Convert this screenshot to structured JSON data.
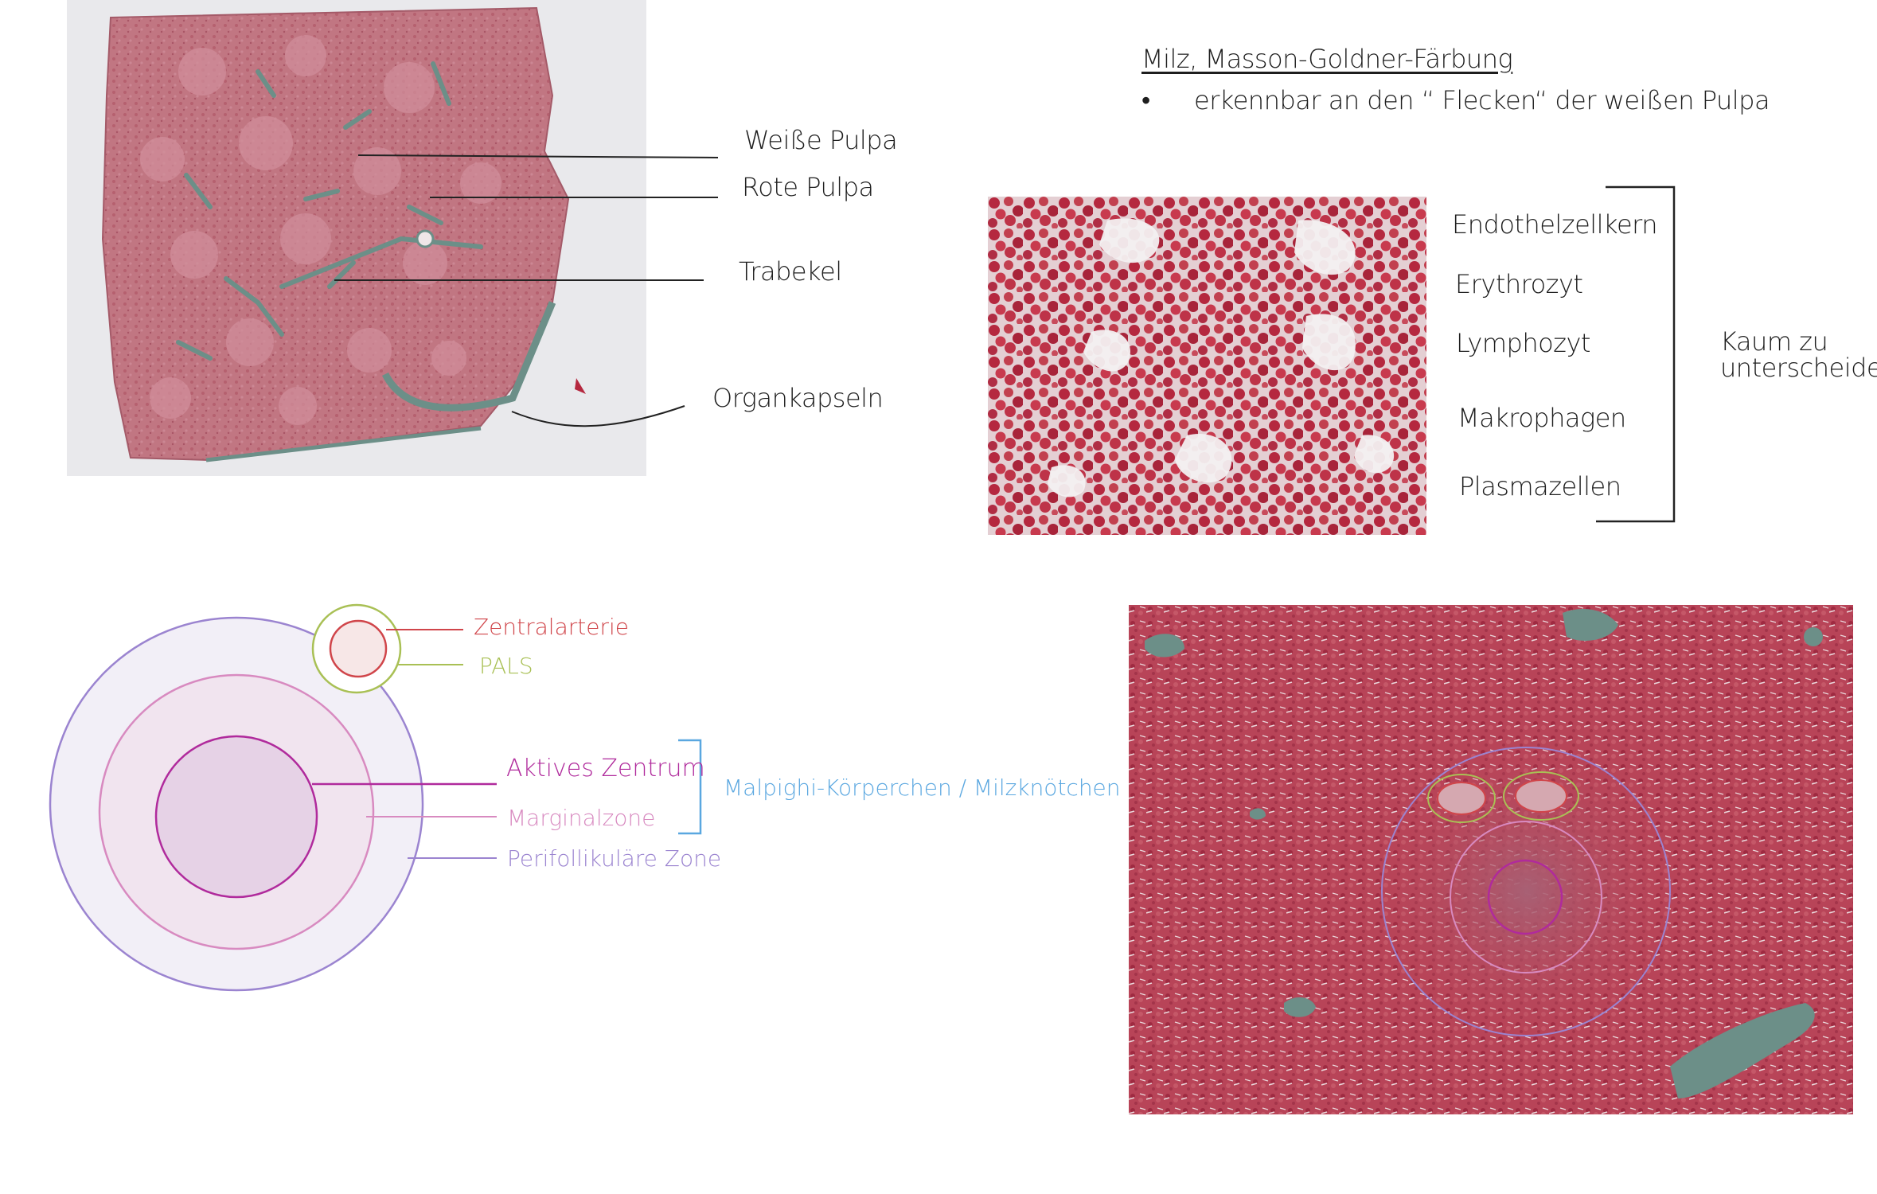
{
  "header": {
    "title": "Milz, Masson-Goldner-Färbung",
    "bullet_symbol": "•",
    "bullet_text": "erkennbar an den “ Flecken“ der weißen Pulpa"
  },
  "overview_labels": {
    "white_pulp": "Weiße Pulpa",
    "red_pulp": "Rote Pulpa",
    "trabecula": "Trabekel",
    "capsule": "Organkapseln"
  },
  "cell_labels": {
    "items": [
      "Endothelzellkern",
      "Erythrozyt",
      "Lymphozyt",
      "Makrophagen",
      "Plasmazellen"
    ],
    "note_line1": "Kaum zu",
    "note_line2": "unterscheiden"
  },
  "diagram": {
    "central_artery": "Zentralarterie",
    "pals": "PALS",
    "active_center": "Aktives Zentrum",
    "marginal_zone": "Marginalzone",
    "perifollicular_zone": "Perifollikuläre Zone",
    "group_label": "Malpighi-Körperchen / Milzknötchen"
  },
  "colors": {
    "tissue_pink": "#c0707e",
    "stain_red": "#b5283f",
    "trabecula_teal": "#6c8f88",
    "central_artery_red": "#d0454a",
    "pals_green": "#a9c055",
    "active_center_magenta": "#b02a9c",
    "marginal_pink": "#d88ac0",
    "perifollicular_lavender": "#9b84d0",
    "bracket_blue": "#5aa7e0"
  }
}
